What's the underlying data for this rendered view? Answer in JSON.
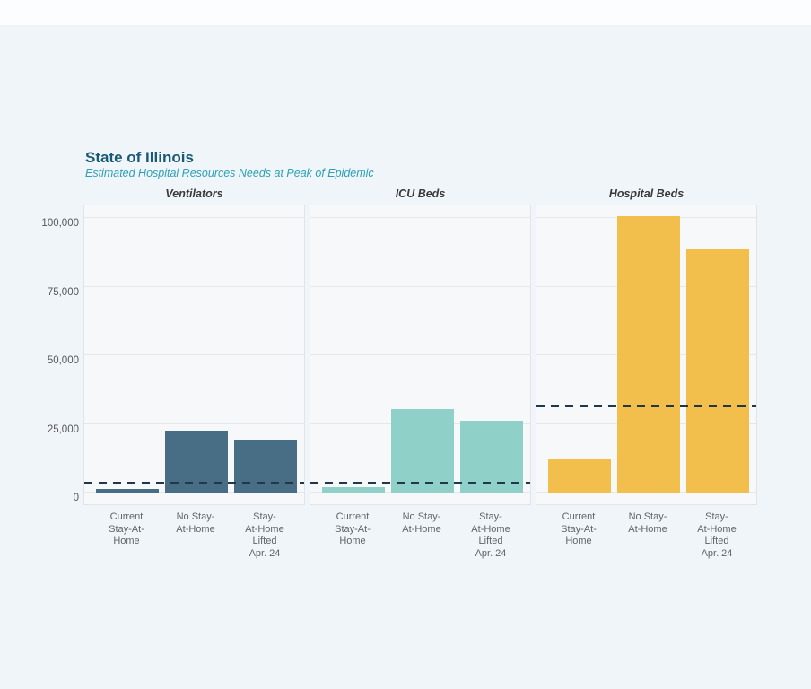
{
  "chart_data": {
    "type": "bar",
    "title": "State of Illinois",
    "subtitle": "Estimated Hospital Resources Needs at Peak of Epidemic",
    "categories": [
      "Current Stay-At-Home",
      "No Stay-At-Home",
      "Stay-At-Home Lifted Apr. 24"
    ],
    "category_label_lines": [
      [
        "Current",
        "Stay-At-",
        "Home"
      ],
      [
        "No Stay-",
        "At-Home"
      ],
      [
        "Stay-",
        "At-Home",
        "Lifted",
        "Apr. 24"
      ]
    ],
    "panels": [
      {
        "label": "Ventilators",
        "color": "#476E84",
        "values": [
          1300,
          22500,
          19000
        ],
        "capacity_line_value": 3500
      },
      {
        "label": "ICU Beds",
        "color": "#8FD0C8",
        "values": [
          2000,
          30500,
          26000
        ],
        "capacity_line_value": 3500
      },
      {
        "label": "Hospital Beds",
        "color": "#F2BF4D",
        "values": [
          12000,
          100500,
          89000
        ],
        "capacity_line_value": 31500
      }
    ],
    "y_axis": {
      "ticks": [
        0,
        25000,
        50000,
        75000,
        100000
      ],
      "tick_labels": [
        "0",
        "25,000",
        "50,000",
        "75,000",
        "100,000"
      ],
      "ylim": [
        0,
        105000
      ],
      "grid": true
    },
    "capacity_line_style": "dashed",
    "legend": null
  },
  "colors": {
    "title": "#1A5A74",
    "subtitle": "#2BA0B6",
    "capacity_line": "#21374B",
    "page_bg": "#F0F5F9",
    "top_strip_bg": "#FBFDFE",
    "plot_bg": "#F6F8F9",
    "plot_border": "#E2E4E8",
    "gridline": "#E5E8EB",
    "axis_text": "#55575A",
    "category_text": "#606468",
    "panel_title_text": "#3A3A3C"
  }
}
